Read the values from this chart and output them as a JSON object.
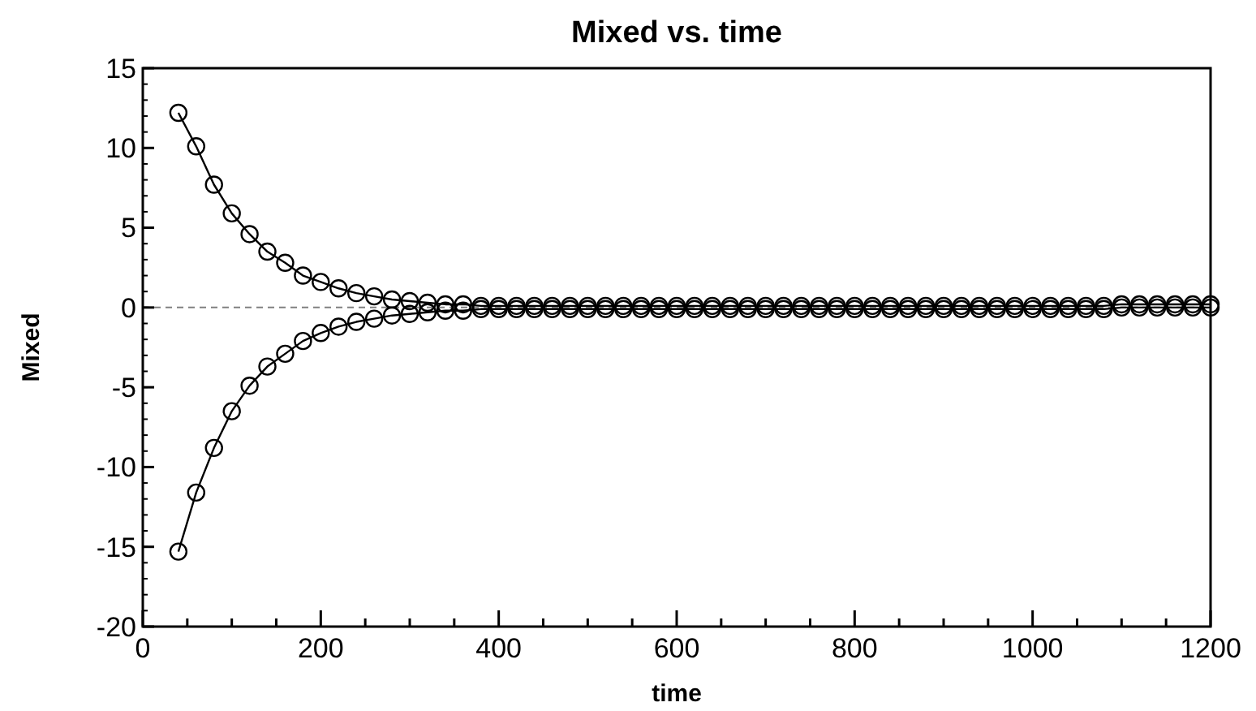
{
  "chart_data": {
    "type": "line",
    "title": "Mixed vs. time",
    "xlabel": "time",
    "ylabel": "Mixed",
    "marker": "circle",
    "line_style": "solid",
    "grid": false,
    "x": [
      40,
      60,
      80,
      100,
      120,
      140,
      160,
      180,
      200,
      220,
      240,
      260,
      280,
      300,
      320,
      340,
      360,
      380,
      400,
      420,
      440,
      460,
      480,
      500,
      520,
      540,
      560,
      580,
      600,
      620,
      640,
      660,
      680,
      700,
      720,
      740,
      760,
      780,
      800,
      820,
      840,
      860,
      880,
      900,
      920,
      940,
      960,
      980,
      1000,
      1020,
      1040,
      1060,
      1080,
      1100,
      1120,
      1140,
      1160,
      1180,
      1200
    ],
    "series": [
      {
        "color": "#000000",
        "values": [
          12.2,
          10.1,
          7.7,
          5.9,
          4.6,
          3.5,
          2.8,
          2.0,
          1.6,
          1.2,
          0.9,
          0.7,
          0.5,
          0.4,
          0.3,
          0.2,
          0.2,
          0.1,
          0.1,
          0.1,
          0.1,
          0.1,
          0.1,
          0.1,
          0.1,
          0.1,
          0.1,
          0.1,
          0.1,
          0.1,
          0.1,
          0.1,
          0.1,
          0.1,
          0.1,
          0.1,
          0.1,
          0.1,
          0.1,
          0.1,
          0.1,
          0.1,
          0.1,
          0.1,
          0.1,
          0.1,
          0.1,
          0.1,
          0.1,
          0.1,
          0.1,
          0.1,
          0.1,
          0.2,
          0.2,
          0.2,
          0.2,
          0.2,
          0.2
        ]
      },
      {
        "color": "#000000",
        "values": [
          -15.3,
          -11.6,
          -8.8,
          -6.5,
          -4.9,
          -3.7,
          -2.9,
          -2.1,
          -1.6,
          -1.2,
          -0.9,
          -0.7,
          -0.5,
          -0.4,
          -0.3,
          -0.2,
          -0.2,
          -0.1,
          -0.1,
          -0.1,
          -0.1,
          -0.1,
          -0.1,
          -0.1,
          -0.1,
          -0.1,
          -0.1,
          -0.1,
          -0.1,
          -0.1,
          -0.1,
          -0.1,
          -0.1,
          -0.1,
          -0.1,
          -0.1,
          -0.1,
          -0.1,
          -0.1,
          -0.1,
          -0.1,
          -0.1,
          -0.1,
          -0.1,
          -0.1,
          -0.1,
          -0.1,
          -0.1,
          -0.1,
          -0.1,
          -0.1,
          -0.1,
          -0.1,
          0,
          0,
          0,
          0,
          0,
          0
        ]
      }
    ],
    "xlim": [
      0,
      1200
    ],
    "ylim": [
      -20,
      15
    ],
    "xticks": [
      0,
      {
        "value": 50,
        "label": null
      },
      {
        "value": 100,
        "label": null
      },
      {
        "value": 150,
        "label": null
      },
      200,
      {
        "value": 250,
        "label": null
      },
      {
        "value": 300,
        "label": null
      },
      {
        "value": 350,
        "label": null
      },
      400,
      {
        "value": 450,
        "label": null
      },
      {
        "value": 500,
        "label": null
      },
      {
        "value": 550,
        "label": null
      },
      600,
      {
        "value": 650,
        "label": null
      },
      {
        "value": 700,
        "label": null
      },
      {
        "value": 750,
        "label": null
      },
      800,
      {
        "value": 850,
        "label": null
      },
      {
        "value": 900,
        "label": null
      },
      {
        "value": 950,
        "label": null
      },
      1000,
      {
        "value": 1050,
        "label": null
      },
      {
        "value": 1100,
        "label": null
      },
      {
        "value": 1150,
        "label": null
      },
      1200
    ],
    "yticks": [
      -20,
      -15,
      -10,
      -5,
      0,
      5,
      10,
      15
    ],
    "ref_lines": [
      {
        "axis": "y",
        "value": 0,
        "color": "#808080",
        "line_style": "dashed"
      }
    ]
  }
}
